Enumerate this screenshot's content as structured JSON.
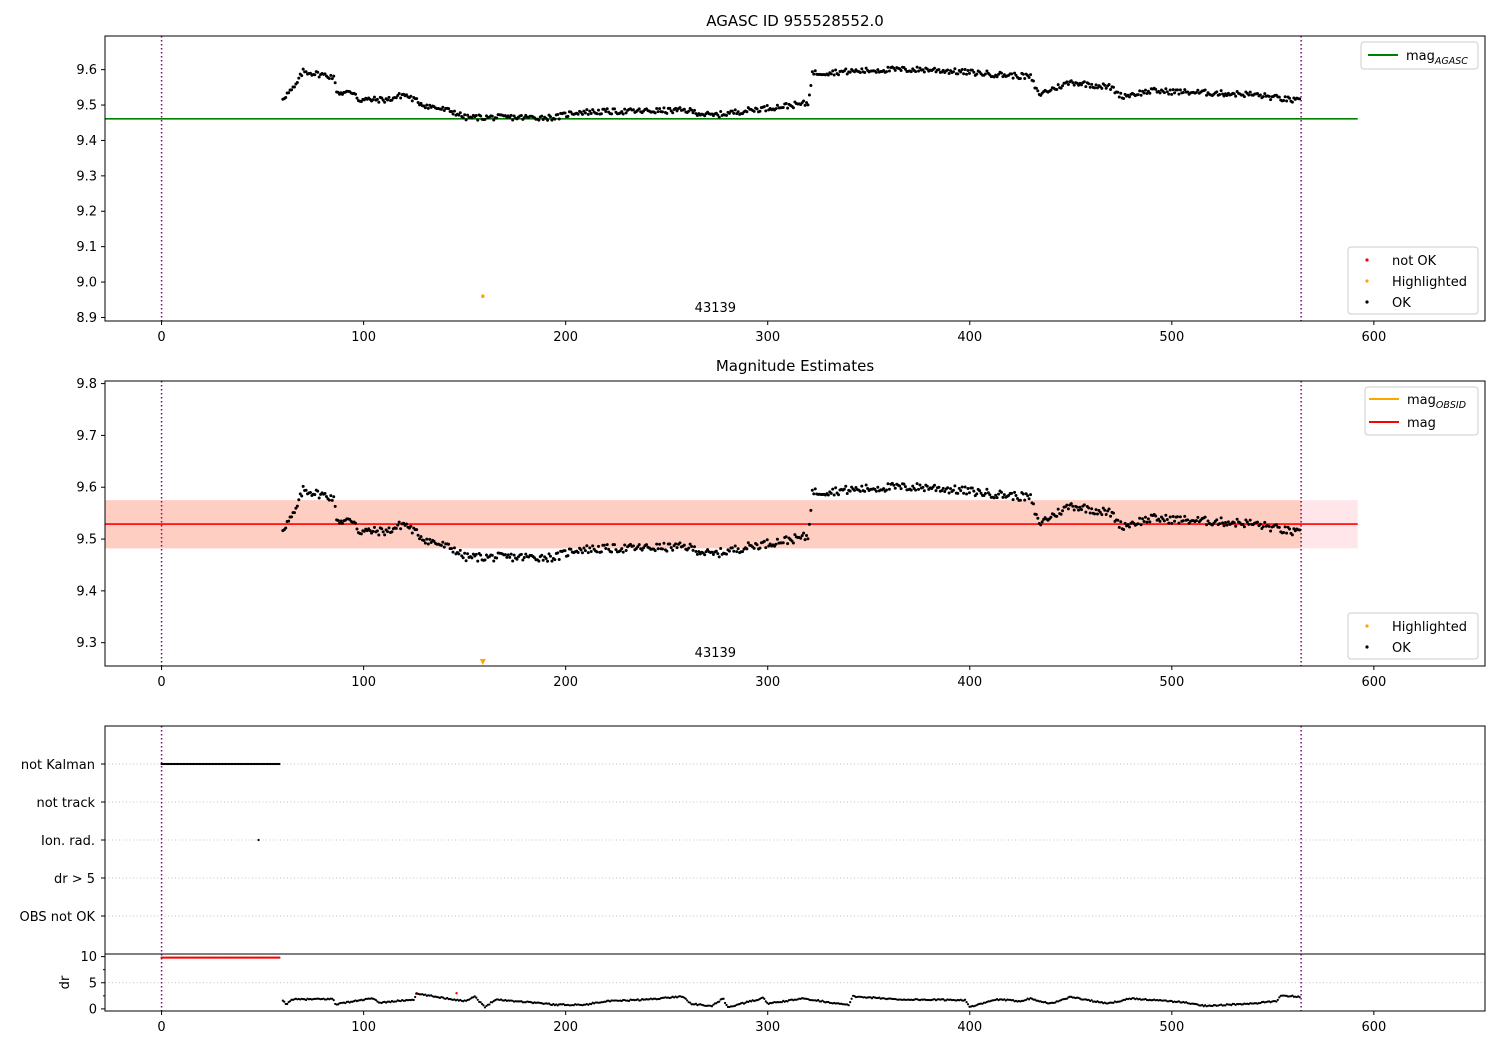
{
  "colors": {
    "ok": "#000000",
    "not_ok": "#ff0000",
    "highlighted": "#ffa500",
    "mag_agasc": "#008000",
    "mag": "#ff0000",
    "mag_obsid": "#ffa500",
    "band_outer": "#ffc0cb",
    "band_inner": "#ffa07a",
    "obs_boundary": "#800080",
    "grid": "#b0b0b0"
  },
  "chart_data": [
    {
      "type": "scatter",
      "title": "AGASC ID 955528552.0",
      "xlim": [
        -28,
        655
      ],
      "ylim": [
        8.89,
        9.695
      ],
      "xticks": [
        "0",
        "100",
        "200",
        "300",
        "400",
        "500",
        "600"
      ],
      "yticks": [
        "8.9",
        "9.0",
        "9.1",
        "9.2",
        "9.3",
        "9.4",
        "9.5",
        "9.6"
      ],
      "vlines": [
        0,
        564
      ],
      "obsid_label": "43139",
      "obsid_label_x": 282,
      "hlines": [
        {
          "name": "mag_AGASC",
          "y": 9.461,
          "x": [
            -28,
            592
          ],
          "color": "#008000"
        }
      ],
      "legend_lines": [
        {
          "base": "mag",
          "sub": "AGASC",
          "color": "#008000"
        }
      ],
      "legend_points": [
        {
          "label": "not OK",
          "color": "#ff0000"
        },
        {
          "label": "Highlighted",
          "color": "#ffa500"
        },
        {
          "label": "OK",
          "color": "#000000"
        }
      ],
      "highlighted": [
        {
          "x": 159,
          "y": 8.96
        }
      ],
      "ok_points": {
        "x_start": 60,
        "x_end": 564,
        "profile": [
          [
            60,
            9.52
          ],
          [
            66,
            9.55
          ],
          [
            70,
            9.595
          ],
          [
            85,
            9.58
          ],
          [
            87,
            9.535
          ],
          [
            96,
            9.535
          ],
          [
            97,
            9.515
          ],
          [
            112,
            9.515
          ],
          [
            120,
            9.53
          ],
          [
            130,
            9.5
          ],
          [
            145,
            9.48
          ],
          [
            150,
            9.465
          ],
          [
            195,
            9.465
          ],
          [
            205,
            9.48
          ],
          [
            260,
            9.485
          ],
          [
            272,
            9.47
          ],
          [
            290,
            9.485
          ],
          [
            320,
            9.505
          ],
          [
            322,
            9.59
          ],
          [
            360,
            9.6
          ],
          [
            380,
            9.6
          ],
          [
            430,
            9.58
          ],
          [
            434,
            9.53
          ],
          [
            450,
            9.565
          ],
          [
            470,
            9.55
          ],
          [
            475,
            9.525
          ],
          [
            490,
            9.54
          ],
          [
            540,
            9.53
          ],
          [
            564,
            9.51
          ]
        ],
        "jitter": 0.008
      }
    },
    {
      "type": "scatter",
      "title": "Magnitude Estimates",
      "xlim": [
        -28,
        655
      ],
      "ylim": [
        9.255,
        9.805
      ],
      "xticks": [
        "0",
        "100",
        "200",
        "300",
        "400",
        "500",
        "600"
      ],
      "yticks": [
        "9.3",
        "9.4",
        "9.5",
        "9.6",
        "9.7",
        "9.8"
      ],
      "vlines": [
        0,
        564
      ],
      "obsid_label": "43139",
      "obsid_label_x": 282,
      "band_outer": [
        9.482,
        9.575
      ],
      "band_inner": [
        9.482,
        9.575
      ],
      "band_x": [
        -28,
        592
      ],
      "inner_band_x": [
        -28,
        564
      ],
      "hlines": [
        {
          "name": "mag",
          "y": 9.529,
          "x": [
            -28,
            592
          ],
          "color": "#ff0000"
        }
      ],
      "legend_lines": [
        {
          "base": "mag",
          "sub": "OBSID",
          "color": "#ffa500"
        },
        {
          "base": "mag",
          "sub": "",
          "color": "#ff0000"
        }
      ],
      "legend_points": [
        {
          "label": "Highlighted",
          "color": "#ffa500"
        },
        {
          "label": "OK",
          "color": "#000000"
        }
      ],
      "highlighted_marker": {
        "x": 159,
        "marker": "down-triangle"
      },
      "ok_points": {
        "x_start": 60,
        "x_end": 564,
        "profile": [
          [
            60,
            9.52
          ],
          [
            66,
            9.55
          ],
          [
            70,
            9.595
          ],
          [
            85,
            9.58
          ],
          [
            87,
            9.535
          ],
          [
            96,
            9.535
          ],
          [
            97,
            9.515
          ],
          [
            112,
            9.515
          ],
          [
            120,
            9.53
          ],
          [
            130,
            9.5
          ],
          [
            145,
            9.48
          ],
          [
            150,
            9.465
          ],
          [
            195,
            9.465
          ],
          [
            205,
            9.48
          ],
          [
            260,
            9.485
          ],
          [
            272,
            9.47
          ],
          [
            290,
            9.485
          ],
          [
            320,
            9.505
          ],
          [
            322,
            9.59
          ],
          [
            360,
            9.6
          ],
          [
            380,
            9.6
          ],
          [
            430,
            9.58
          ],
          [
            434,
            9.53
          ],
          [
            450,
            9.565
          ],
          [
            470,
            9.55
          ],
          [
            475,
            9.525
          ],
          [
            490,
            9.54
          ],
          [
            540,
            9.53
          ],
          [
            564,
            9.51
          ]
        ],
        "jitter": 0.008
      }
    },
    {
      "type": "scatter",
      "title": "",
      "xlim": [
        -28,
        655
      ],
      "categories": [
        "not Kalman",
        "not track",
        "Ion. rad.",
        "dr > 5",
        "OBS not OK"
      ],
      "vlines": [
        0,
        564
      ],
      "flag_points": [
        {
          "category": "not Kalman",
          "x_start": 0,
          "x_end": 59
        },
        {
          "category": "Ion. rad.",
          "x_start": 48,
          "x_end": 48
        }
      ]
    },
    {
      "type": "scatter",
      "title": "",
      "xlim": [
        -28,
        655
      ],
      "ylim": [
        -0.4,
        10.5
      ],
      "xticks": [
        "0",
        "100",
        "200",
        "300",
        "400",
        "500",
        "600"
      ],
      "yticks": [
        "0",
        "5",
        "10"
      ],
      "ylabel": "dr",
      "vlines": [
        0,
        564
      ],
      "red_points": {
        "x_start": 0,
        "x_end": 59,
        "y": 9.8
      },
      "extra_red": [
        {
          "x": 126,
          "y": 2.9
        },
        {
          "x": 146,
          "y": 3.0
        }
      ],
      "ok_points": {
        "x_start": 60,
        "x_end": 564,
        "dips": [
          [
            60,
            1.5
          ],
          [
            62,
            0.8
          ],
          [
            64,
            1.8
          ],
          [
            85,
            1.9
          ],
          [
            86,
            0.9
          ],
          [
            104,
            2.0
          ],
          [
            108,
            1.2
          ],
          [
            125,
            1.8
          ],
          [
            126,
            2.9
          ],
          [
            150,
            1.5
          ],
          [
            155,
            2.4
          ],
          [
            160,
            0.3
          ],
          [
            165,
            1.8
          ],
          [
            185,
            1.2
          ],
          [
            195,
            0.8
          ],
          [
            210,
            0.8
          ],
          [
            218,
            1.4
          ],
          [
            240,
            1.8
          ],
          [
            258,
            2.4
          ],
          [
            262,
            1.0
          ],
          [
            272,
            0.5
          ],
          [
            278,
            2.0
          ],
          [
            280,
            0.3
          ],
          [
            298,
            2.1
          ],
          [
            300,
            1.0
          ],
          [
            318,
            2.0
          ],
          [
            340,
            0.7
          ],
          [
            342,
            2.4
          ],
          [
            365,
            1.8
          ],
          [
            398,
            1.7
          ],
          [
            400,
            0.3
          ],
          [
            413,
            1.8
          ],
          [
            425,
            1.5
          ],
          [
            430,
            2.0
          ],
          [
            440,
            1.0
          ],
          [
            450,
            2.3
          ],
          [
            468,
            1.0
          ],
          [
            480,
            2.0
          ],
          [
            505,
            1.3
          ],
          [
            516,
            0.6
          ],
          [
            540,
            1.0
          ],
          [
            552,
            1.5
          ],
          [
            554,
            2.6
          ],
          [
            564,
            2.3
          ]
        ]
      }
    }
  ]
}
